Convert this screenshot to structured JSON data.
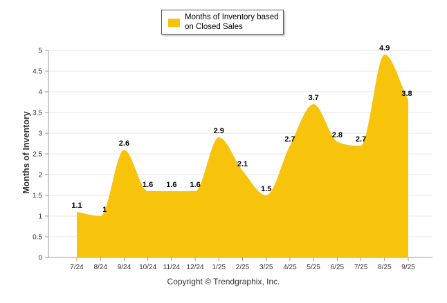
{
  "chart_data": {
    "type": "area",
    "title": "",
    "xlabel": "",
    "ylabel": "Months of Inventory",
    "ylim": [
      0,
      5
    ],
    "yticks": [
      "0",
      "0.5",
      "1",
      "1.5",
      "2",
      "2.5",
      "3",
      "3.5",
      "4",
      "4.5",
      "5"
    ],
    "grid": true,
    "legend_position": "top-center",
    "categories": [
      "7/24",
      "8/24",
      "9/24",
      "10/24",
      "11/24",
      "12/24",
      "1/25",
      "2/25",
      "3/25",
      "4/25",
      "5/25",
      "6/25",
      "7/25",
      "8/25",
      "9/25"
    ],
    "series": [
      {
        "name": "Months of Inventory based on Closed Sales",
        "color": "#f7c30b",
        "values": [
          1.1,
          1,
          2.6,
          1.6,
          1.6,
          1.6,
          2.9,
          2.1,
          1.5,
          2.7,
          3.7,
          2.8,
          2.7,
          4.9,
          3.8
        ],
        "labels": [
          "1.1",
          "1",
          "2.6",
          "1.6",
          "1.6",
          "1.6",
          "2.9",
          "2.1",
          "1.5",
          "2.7",
          "3.7",
          "2.8",
          "2.7",
          "4.9",
          "3.8"
        ]
      }
    ]
  },
  "legend": {
    "label": "Months of Inventory based on Closed Sales"
  },
  "footer": {
    "copyright": "Copyright © Trendgraphix, Inc."
  }
}
